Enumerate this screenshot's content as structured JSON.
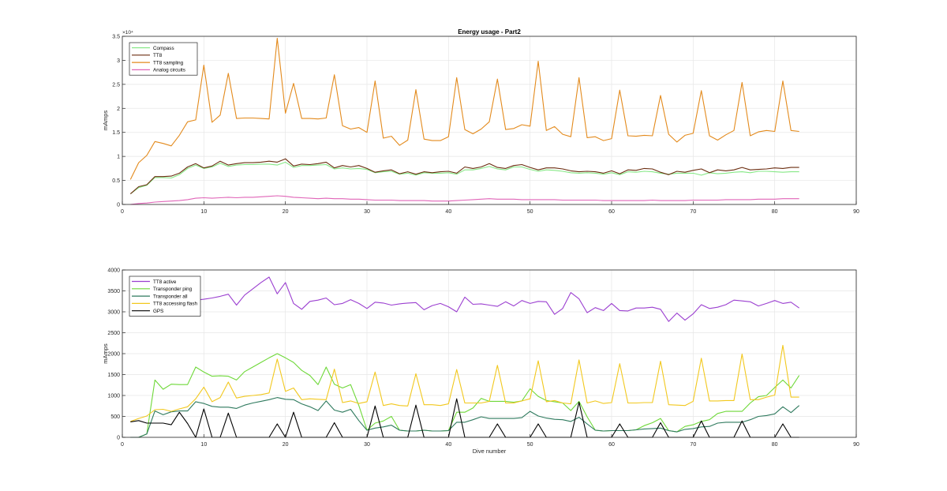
{
  "chart_data": [
    {
      "type": "line",
      "title": "Energy usage - Part2",
      "xlabel": "",
      "ylabel": "mAmps",
      "xlim": [
        0,
        90
      ],
      "ylim": [
        0,
        35000
      ],
      "y_exponent_label": "×10⁴",
      "xticks": [
        0,
        10,
        20,
        30,
        40,
        50,
        60,
        70,
        80,
        90
      ],
      "yticks": [
        0,
        5000,
        10000,
        15000,
        20000,
        25000,
        30000,
        35000
      ],
      "ytick_labels": [
        "0",
        "0.5",
        "1",
        "1.5",
        "2",
        "2.5",
        "3",
        "3.5"
      ],
      "grid": true,
      "legend_position": "top-left",
      "x": [
        1,
        2,
        3,
        4,
        5,
        6,
        7,
        8,
        9,
        10,
        11,
        12,
        13,
        14,
        15,
        16,
        17,
        18,
        19,
        20,
        21,
        22,
        23,
        24,
        25,
        26,
        27,
        28,
        29,
        30,
        31,
        32,
        33,
        34,
        35,
        36,
        37,
        38,
        39,
        40,
        41,
        42,
        43,
        44,
        45,
        46,
        47,
        48,
        49,
        50,
        51,
        52,
        53,
        54,
        55,
        56,
        57,
        58,
        59,
        60,
        61,
        62,
        63,
        64,
        65,
        66,
        67,
        68,
        69,
        70,
        71,
        72,
        73,
        74,
        75,
        76,
        77,
        78,
        79,
        80,
        81,
        82,
        83
      ],
      "series": [
        {
          "name": "Compass",
          "color": "#86e886",
          "values": [
            2200,
            3500,
            4000,
            5600,
            5600,
            5500,
            6200,
            7500,
            8200,
            7500,
            7800,
            8600,
            7900,
            8200,
            8300,
            8300,
            8400,
            8400,
            8200,
            8800,
            7700,
            8100,
            8100,
            8200,
            8300,
            7400,
            7600,
            7400,
            7500,
            7300,
            6600,
            6800,
            6900,
            6300,
            6500,
            6100,
            6600,
            6500,
            6500,
            6600,
            6300,
            7200,
            7200,
            7500,
            7900,
            7400,
            7200,
            7800,
            7800,
            7300,
            6900,
            7200,
            7100,
            6900,
            6600,
            6500,
            6600,
            6500,
            6300,
            6600,
            6200,
            6800,
            6700,
            6900,
            6800,
            6500,
            6300,
            6500,
            6500,
            6500,
            6100,
            6600,
            6400,
            6500,
            6700,
            6800,
            6600,
            6900,
            6900,
            6800,
            6700,
            6800,
            6800
          ]
        },
        {
          "name": "TT8",
          "color": "#6b2d10",
          "values": [
            2200,
            3700,
            4100,
            5800,
            5800,
            5900,
            6500,
            7800,
            8500,
            7600,
            8000,
            9000,
            8200,
            8500,
            8700,
            8700,
            8800,
            9000,
            8800,
            9500,
            8000,
            8400,
            8300,
            8500,
            8800,
            7600,
            8100,
            7800,
            8100,
            7500,
            6700,
            7000,
            7200,
            6400,
            6800,
            6300,
            6800,
            6600,
            6800,
            6900,
            6500,
            7800,
            7500,
            7800,
            8500,
            7700,
            7500,
            8100,
            8300,
            7700,
            7200,
            7600,
            7600,
            7400,
            7000,
            6800,
            6900,
            6800,
            6500,
            7000,
            6400,
            7200,
            7100,
            7500,
            7400,
            6700,
            6200,
            6900,
            6700,
            7100,
            7400,
            6600,
            7200,
            7000,
            7200,
            7700,
            7200,
            7300,
            7400,
            7600,
            7500,
            7700,
            7700
          ]
        },
        {
          "name": "TT8 sampling",
          "color": "#e38a1c",
          "values": [
            5200,
            8700,
            10200,
            13100,
            12700,
            12200,
            14400,
            17200,
            17600,
            29000,
            17100,
            18600,
            27300,
            17900,
            18000,
            18000,
            17900,
            17800,
            34600,
            19000,
            25200,
            17900,
            17900,
            17800,
            18000,
            27000,
            16400,
            15700,
            16000,
            15000,
            25700,
            13800,
            14200,
            12300,
            13400,
            23900,
            13600,
            13300,
            13300,
            14100,
            26400,
            15600,
            14700,
            15700,
            17200,
            26100,
            15600,
            15800,
            16600,
            16300,
            29800,
            15400,
            16200,
            14600,
            14100,
            26400,
            13900,
            14100,
            13300,
            13700,
            23800,
            14300,
            14200,
            14400,
            14300,
            22700,
            14600,
            13000,
            14400,
            14800,
            23700,
            14300,
            13400,
            14500,
            15400,
            25400,
            14300,
            15100,
            15400,
            15200,
            25700,
            15400,
            15200
          ]
        },
        {
          "name": "Analog circuits",
          "color": "#e065b8",
          "values": [
            0,
            200,
            300,
            500,
            600,
            700,
            800,
            1000,
            1300,
            1400,
            1300,
            1400,
            1500,
            1400,
            1500,
            1500,
            1600,
            1700,
            1800,
            1700,
            1500,
            1400,
            1300,
            1200,
            1300,
            1200,
            1200,
            1100,
            1100,
            1000,
            900,
            900,
            900,
            800,
            800,
            800,
            800,
            700,
            700,
            700,
            800,
            900,
            1000,
            1100,
            1200,
            1100,
            1100,
            1100,
            1000,
            1000,
            1000,
            1000,
            1000,
            900,
            900,
            900,
            900,
            900,
            800,
            800,
            800,
            800,
            800,
            800,
            900,
            800,
            800,
            800,
            800,
            900,
            900,
            900,
            900,
            1000,
            1000,
            1000,
            1000,
            1100,
            1100,
            1100,
            1200,
            1200,
            1200
          ]
        }
      ]
    },
    {
      "type": "line",
      "title": "",
      "xlabel": "Dive number",
      "ylabel": "mAmps",
      "xlim": [
        0,
        90
      ],
      "ylim": [
        0,
        4000
      ],
      "xticks": [
        0,
        10,
        20,
        30,
        40,
        50,
        60,
        70,
        80,
        90
      ],
      "yticks": [
        0,
        500,
        1000,
        1500,
        2000,
        2500,
        3000,
        3500,
        4000
      ],
      "ytick_labels": [
        "0",
        "500",
        "1000",
        "1500",
        "2000",
        "2500",
        "3000",
        "3500",
        "4000"
      ],
      "grid": true,
      "legend_position": "top-left",
      "x": [
        1,
        2,
        3,
        4,
        5,
        6,
        7,
        8,
        9,
        10,
        11,
        12,
        13,
        14,
        15,
        16,
        17,
        18,
        19,
        20,
        21,
        22,
        23,
        24,
        25,
        26,
        27,
        28,
        29,
        30,
        31,
        32,
        33,
        34,
        35,
        36,
        37,
        38,
        39,
        40,
        41,
        42,
        43,
        44,
        45,
        46,
        47,
        48,
        49,
        50,
        51,
        52,
        53,
        54,
        55,
        56,
        57,
        58,
        59,
        60,
        61,
        62,
        63,
        64,
        65,
        66,
        67,
        68,
        69,
        70,
        71,
        72,
        73,
        74,
        75,
        76,
        77,
        78,
        79,
        80,
        81,
        82,
        83
      ],
      "series": [
        {
          "name": "TT8 active",
          "color": "#9b3fd0",
          "values": [
            2950,
            3100,
            3200,
            3230,
            3250,
            3260,
            3270,
            3280,
            3280,
            3300,
            3330,
            3370,
            3420,
            3160,
            3400,
            3550,
            3700,
            3830,
            3430,
            3700,
            3200,
            3060,
            3250,
            3280,
            3330,
            3170,
            3200,
            3290,
            3200,
            3080,
            3230,
            3210,
            3160,
            3190,
            3210,
            3220,
            3050,
            3150,
            3200,
            3120,
            3000,
            3350,
            3180,
            3190,
            3160,
            3130,
            3240,
            3140,
            3270,
            3200,
            3250,
            3240,
            2940,
            3080,
            3460,
            3310,
            2980,
            3100,
            3030,
            3200,
            3030,
            3020,
            3090,
            3090,
            3110,
            3060,
            2770,
            2970,
            2800,
            2950,
            3170,
            3080,
            3110,
            3170,
            3280,
            3260,
            3240,
            3140,
            3200,
            3270,
            3200,
            3230,
            3090
          ]
        },
        {
          "name": "Transponder ping",
          "color": "#6ed838",
          "values": [
            0,
            0,
            80,
            1370,
            1150,
            1270,
            1260,
            1260,
            1680,
            1560,
            1460,
            1470,
            1460,
            1370,
            1570,
            1680,
            1790,
            1900,
            2000,
            1900,
            1790,
            1600,
            1480,
            1260,
            1680,
            1270,
            1180,
            1260,
            760,
            170,
            340,
            390,
            500,
            170,
            150,
            150,
            170,
            150,
            150,
            160,
            600,
            600,
            700,
            930,
            860,
            860,
            860,
            840,
            870,
            1160,
            980,
            880,
            850,
            820,
            640,
            860,
            490,
            170,
            150,
            160,
            160,
            160,
            180,
            280,
            350,
            450,
            160,
            130,
            260,
            300,
            380,
            420,
            570,
            620,
            620,
            620,
            820,
            970,
            1000,
            1190,
            1370,
            1180,
            1480
          ]
        },
        {
          "name": "Transponder all",
          "color": "#2f7a5e",
          "values": [
            0,
            0,
            80,
            630,
            540,
            610,
            630,
            630,
            850,
            810,
            740,
            720,
            720,
            690,
            770,
            820,
            860,
            900,
            950,
            910,
            900,
            800,
            730,
            640,
            870,
            650,
            600,
            670,
            400,
            170,
            220,
            250,
            290,
            170,
            150,
            150,
            170,
            150,
            150,
            160,
            360,
            360,
            420,
            490,
            450,
            450,
            450,
            450,
            470,
            620,
            510,
            460,
            430,
            420,
            380,
            480,
            320,
            170,
            150,
            160,
            160,
            160,
            180,
            200,
            210,
            220,
            160,
            130,
            190,
            210,
            250,
            260,
            340,
            360,
            360,
            360,
            420,
            500,
            520,
            560,
            730,
            590,
            760
          ]
        },
        {
          "name": "TT8 accessing flash",
          "color": "#f2c81e",
          "values": [
            380,
            450,
            510,
            660,
            670,
            620,
            680,
            730,
            920,
            1200,
            850,
            950,
            1320,
            940,
            980,
            1000,
            1020,
            1060,
            1870,
            1100,
            1180,
            900,
            920,
            910,
            900,
            1630,
            830,
            870,
            810,
            850,
            1560,
            760,
            800,
            760,
            750,
            1520,
            780,
            780,
            760,
            800,
            1620,
            820,
            820,
            820,
            860,
            1720,
            820,
            820,
            870,
            920,
            1830,
            850,
            880,
            820,
            800,
            1850,
            820,
            870,
            810,
            830,
            1760,
            820,
            820,
            830,
            830,
            1820,
            780,
            770,
            760,
            860,
            1890,
            870,
            870,
            880,
            880,
            1990,
            900,
            900,
            960,
            1010,
            2200,
            960,
            960
          ]
        },
        {
          "name": "GPS",
          "color": "#000000",
          "values": [
            370,
            400,
            340,
            340,
            340,
            300,
            600,
            330,
            0,
            680,
            0,
            0,
            580,
            0,
            0,
            0,
            0,
            0,
            320,
            0,
            600,
            0,
            0,
            0,
            0,
            350,
            0,
            0,
            0,
            0,
            750,
            0,
            0,
            0,
            0,
            770,
            0,
            0,
            0,
            0,
            920,
            0,
            0,
            0,
            0,
            320,
            0,
            0,
            0,
            0,
            320,
            0,
            0,
            0,
            0,
            840,
            0,
            0,
            0,
            0,
            320,
            0,
            0,
            0,
            0,
            350,
            0,
            0,
            0,
            0,
            390,
            0,
            0,
            0,
            0,
            390,
            0,
            0,
            0,
            0,
            320,
            0,
            0
          ]
        }
      ]
    }
  ]
}
